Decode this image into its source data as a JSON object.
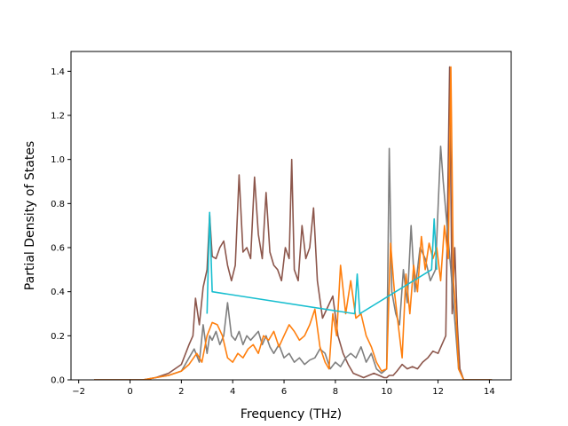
{
  "chart_data": {
    "type": "line",
    "title": "",
    "xlabel": "Frequency (THz)",
    "ylabel": "Partial Density of States",
    "xlim": [
      -2.3,
      14.85
    ],
    "ylim": [
      0.0,
      1.49
    ],
    "xticks": [
      -2,
      0,
      2,
      4,
      6,
      8,
      10,
      12,
      14
    ],
    "yticks": [
      0.0,
      0.2,
      0.4,
      0.6,
      0.8,
      1.0,
      1.2,
      1.4
    ],
    "xtick_labels": [
      "−2",
      "0",
      "2",
      "4",
      "6",
      "8",
      "10",
      "12",
      "14"
    ],
    "ytick_labels": [
      "0.0",
      "0.2",
      "0.4",
      "0.6",
      "0.8",
      "1.0",
      "1.2",
      "1.4"
    ],
    "grid": false,
    "legend": "none",
    "series": [
      {
        "color": "#8c564b",
        "x": [
          -1.4,
          0.5,
          1.0,
          1.5,
          2.0,
          2.3,
          2.45,
          2.55,
          2.7,
          2.85,
          3.0,
          3.1,
          3.2,
          3.35,
          3.5,
          3.65,
          3.8,
          3.95,
          4.1,
          4.25,
          4.4,
          4.55,
          4.7,
          4.85,
          5.0,
          5.15,
          5.3,
          5.45,
          5.6,
          5.75,
          5.9,
          6.05,
          6.2,
          6.3,
          6.4,
          6.55,
          6.7,
          6.85,
          7.0,
          7.15,
          7.3,
          7.5,
          7.7,
          7.9,
          8.1,
          8.3,
          8.5,
          8.7,
          8.9,
          9.1,
          9.3,
          9.5,
          9.7,
          9.9,
          10.0,
          10.1,
          10.25,
          10.4,
          10.6,
          10.8,
          11.0,
          11.2,
          11.4,
          11.6,
          11.8,
          12.0,
          12.15,
          12.3,
          12.45,
          12.55,
          12.65,
          12.75,
          12.85,
          13.0,
          14.1
        ],
        "y": [
          0.0,
          0.0,
          0.01,
          0.03,
          0.07,
          0.16,
          0.2,
          0.37,
          0.25,
          0.42,
          0.5,
          0.75,
          0.56,
          0.55,
          0.6,
          0.63,
          0.52,
          0.45,
          0.52,
          0.93,
          0.58,
          0.6,
          0.55,
          0.92,
          0.66,
          0.55,
          0.85,
          0.58,
          0.52,
          0.5,
          0.45,
          0.6,
          0.55,
          1.0,
          0.5,
          0.45,
          0.7,
          0.55,
          0.6,
          0.78,
          0.45,
          0.28,
          0.33,
          0.38,
          0.2,
          0.12,
          0.07,
          0.03,
          0.02,
          0.01,
          0.02,
          0.03,
          0.02,
          0.01,
          0.01,
          0.02,
          0.02,
          0.04,
          0.07,
          0.05,
          0.06,
          0.05,
          0.08,
          0.1,
          0.13,
          0.12,
          0.16,
          0.2,
          1.42,
          0.3,
          0.6,
          0.25,
          0.05,
          0.0,
          0.0
        ]
      },
      {
        "color": "#7f7f7f",
        "x": [
          -1.4,
          0.5,
          1.0,
          1.5,
          2.0,
          2.3,
          2.5,
          2.7,
          2.85,
          3.0,
          3.1,
          3.2,
          3.35,
          3.5,
          3.65,
          3.8,
          3.95,
          4.1,
          4.25,
          4.4,
          4.55,
          4.7,
          4.85,
          5.0,
          5.15,
          5.3,
          5.45,
          5.6,
          5.8,
          6.0,
          6.2,
          6.4,
          6.6,
          6.8,
          7.0,
          7.2,
          7.4,
          7.6,
          7.8,
          8.0,
          8.2,
          8.4,
          8.6,
          8.8,
          9.0,
          9.2,
          9.4,
          9.6,
          9.8,
          10.0,
          10.1,
          10.2,
          10.35,
          10.5,
          10.65,
          10.8,
          10.95,
          11.1,
          11.3,
          11.5,
          11.7,
          11.9,
          12.1,
          12.2,
          12.35,
          12.5,
          12.6,
          12.7,
          12.8,
          13.0,
          14.1
        ],
        "y": [
          0.0,
          0.0,
          0.01,
          0.02,
          0.04,
          0.1,
          0.14,
          0.08,
          0.25,
          0.12,
          0.2,
          0.18,
          0.22,
          0.16,
          0.2,
          0.35,
          0.2,
          0.18,
          0.22,
          0.16,
          0.2,
          0.18,
          0.2,
          0.22,
          0.16,
          0.2,
          0.15,
          0.12,
          0.16,
          0.1,
          0.12,
          0.08,
          0.1,
          0.07,
          0.09,
          0.1,
          0.14,
          0.12,
          0.05,
          0.08,
          0.06,
          0.1,
          0.12,
          0.1,
          0.15,
          0.08,
          0.12,
          0.05,
          0.03,
          0.05,
          1.05,
          0.4,
          0.3,
          0.25,
          0.5,
          0.35,
          0.7,
          0.4,
          0.6,
          0.55,
          0.45,
          0.5,
          1.06,
          0.9,
          0.7,
          0.5,
          0.35,
          0.2,
          0.05,
          0.0,
          0.0
        ]
      },
      {
        "color": "#ff7f0e",
        "x": [
          -1.4,
          0.5,
          1.0,
          1.5,
          2.0,
          2.3,
          2.6,
          2.8,
          3.0,
          3.2,
          3.4,
          3.6,
          3.8,
          4.0,
          4.2,
          4.4,
          4.6,
          4.8,
          5.0,
          5.2,
          5.4,
          5.6,
          5.8,
          6.0,
          6.2,
          6.4,
          6.6,
          6.8,
          7.0,
          7.2,
          7.4,
          7.6,
          7.75,
          7.9,
          8.05,
          8.2,
          8.4,
          8.6,
          8.8,
          9.0,
          9.2,
          9.4,
          9.6,
          9.8,
          10.0,
          10.15,
          10.3,
          10.45,
          10.6,
          10.75,
          10.9,
          11.05,
          11.2,
          11.35,
          11.5,
          11.65,
          11.8,
          11.95,
          12.1,
          12.25,
          12.4,
          12.5,
          12.6,
          12.7,
          12.8,
          13.0,
          14.1
        ],
        "y": [
          0.0,
          0.0,
          0.01,
          0.02,
          0.04,
          0.07,
          0.12,
          0.08,
          0.2,
          0.26,
          0.25,
          0.2,
          0.1,
          0.08,
          0.12,
          0.1,
          0.14,
          0.16,
          0.12,
          0.2,
          0.18,
          0.22,
          0.15,
          0.2,
          0.25,
          0.22,
          0.18,
          0.2,
          0.25,
          0.32,
          0.15,
          0.08,
          0.05,
          0.3,
          0.2,
          0.52,
          0.3,
          0.45,
          0.28,
          0.3,
          0.2,
          0.15,
          0.08,
          0.04,
          0.05,
          0.62,
          0.4,
          0.25,
          0.1,
          0.48,
          0.3,
          0.52,
          0.4,
          0.65,
          0.5,
          0.62,
          0.55,
          0.6,
          0.45,
          0.7,
          0.55,
          1.42,
          0.45,
          0.3,
          0.05,
          0.0,
          0.0
        ]
      },
      {
        "color": "#17becf",
        "x": [
          3.0,
          3.1,
          3.2,
          8.75,
          8.85,
          8.95,
          11.75,
          11.85,
          11.95
        ],
        "y": [
          0.3,
          0.76,
          0.4,
          0.3,
          0.48,
          0.3,
          0.5,
          0.73,
          0.5
        ]
      }
    ]
  }
}
